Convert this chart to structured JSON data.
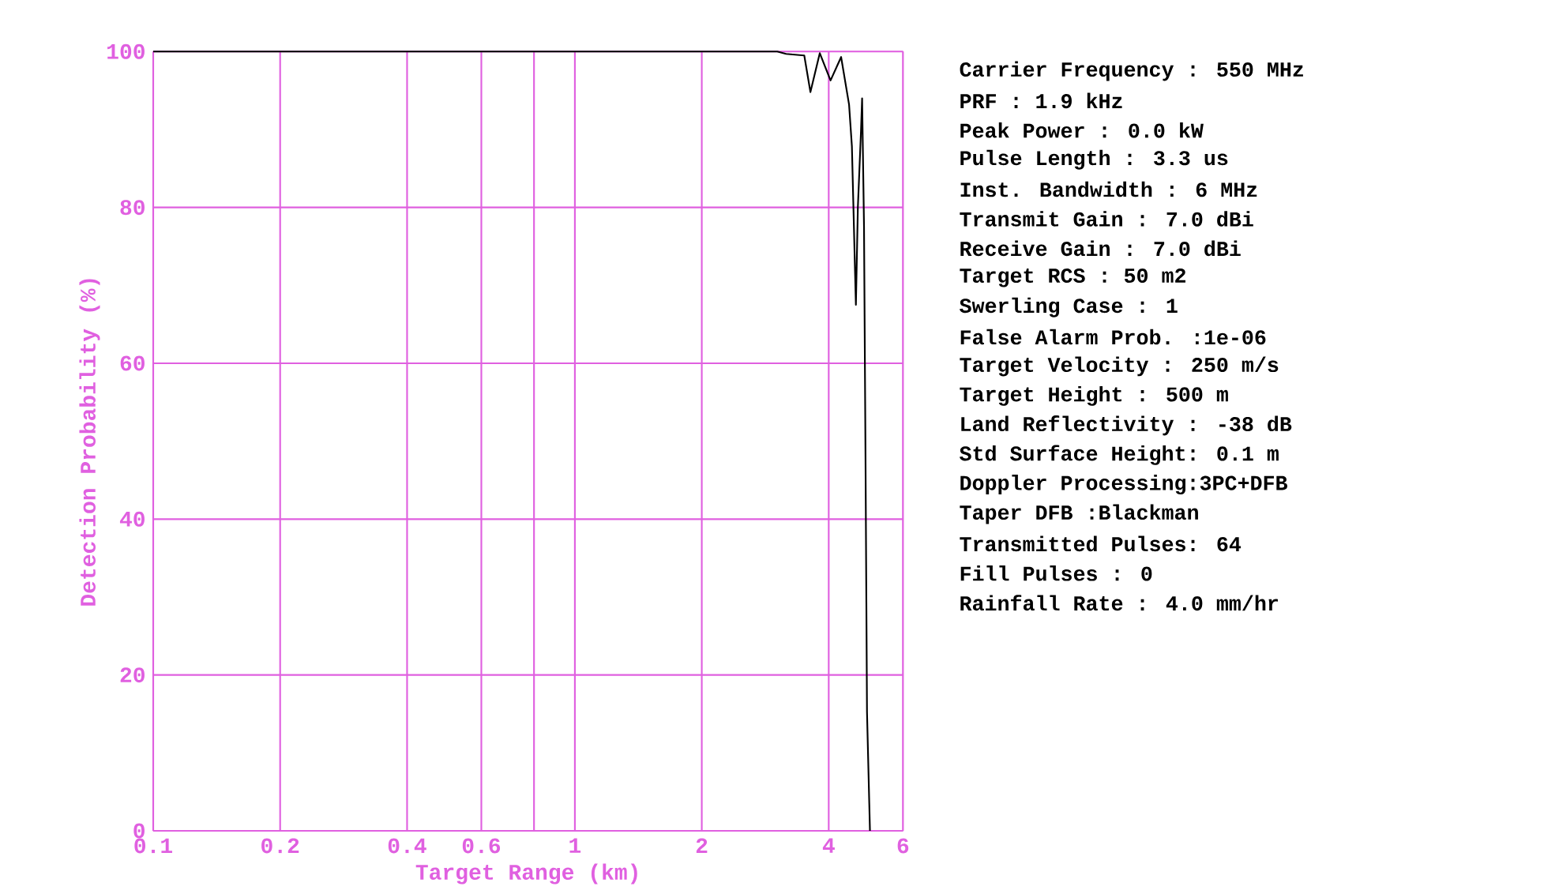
{
  "chart_data": {
    "type": "line",
    "xlabel": "Target Range (km)",
    "ylabel": "Detection Probability (%)",
    "x": [
      0.1,
      3.02,
      3.17,
      3.5,
      3.62,
      3.81,
      4.04,
      4.28,
      4.47,
      4.54,
      4.62,
      4.64,
      4.69,
      4.77,
      4.8,
      4.85,
      4.89,
      4.93,
      5.01
    ],
    "values": [
      100,
      100,
      99.7,
      99.5,
      94.8,
      99.8,
      96.3,
      99.3,
      93.2,
      87.8,
      71.4,
      67.5,
      80,
      89.7,
      94,
      77.6,
      48,
      15.2,
      0
    ],
    "color": "#000000",
    "log": "x",
    "xlim": [
      0.1,
      6
    ],
    "ylim": [
      0,
      100
    ],
    "xticks": [
      0.1,
      0.2,
      0.4,
      0.6,
      {
        "value": 0.8,
        "label": null
      },
      1,
      2,
      4,
      6
    ],
    "yticks": [
      0,
      20,
      40,
      60,
      80,
      100
    ],
    "grid": true,
    "annotations": [
      "Carrier Frequency :  550 MHz",
      "PRF               :  1.9 kHz",
      "Peak Power        :  0.0 kW",
      "Pulse Length      :  3.3 us",
      "Inst. Bandwidth   :    6 MHz",
      "Transmit Gain     :  7.0 dBi",
      "Receive Gain      :  7.0 dBi",
      "Target RCS        :   50 m2",
      "Swerling Case     :    1",
      "False Alarm Prob. :1e-06",
      "Target Velocity   :  250 m/s",
      "Target Height     :  500 m",
      "Land Reflectivity :  -38 dB",
      "Std Surface Height:  0.1 m",
      "Doppler Processing:3PC+DFB",
      "Taper DFB         :Blackman",
      "Transmitted Pulses:   64",
      "Fill Pulses       :    0",
      "Rainfall Rate     :  4.0 mm/hr"
    ]
  }
}
